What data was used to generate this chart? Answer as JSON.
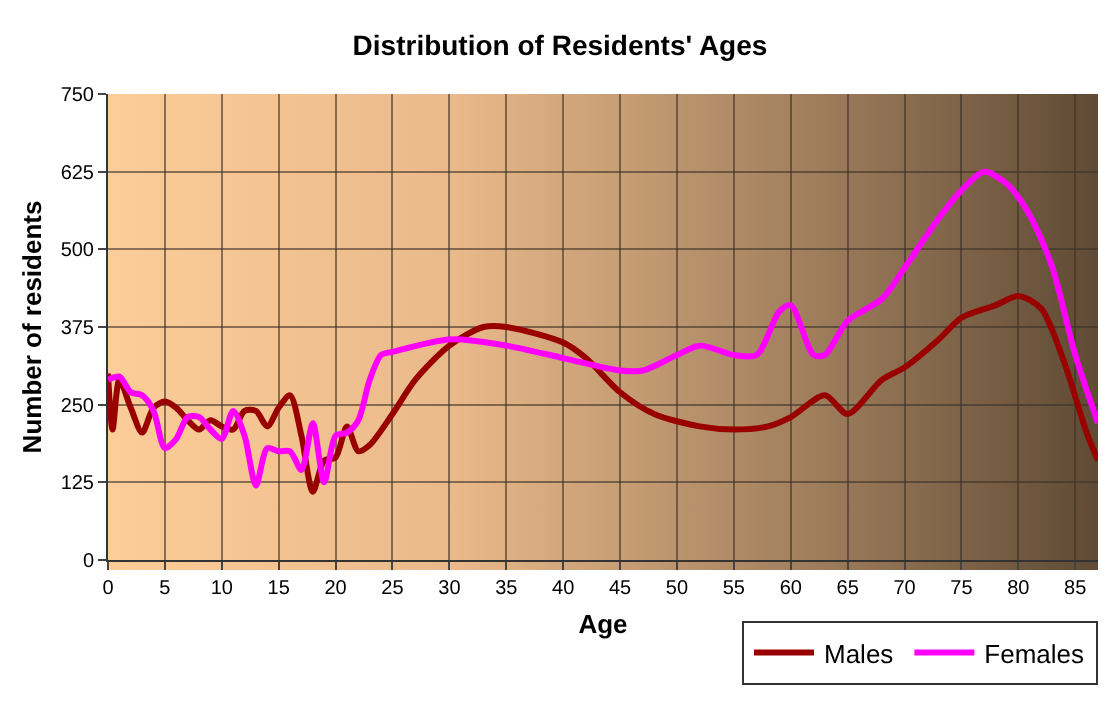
{
  "chart_data": {
    "type": "line",
    "title": "Distribution of Residents' Ages",
    "xlabel": "Age",
    "ylabel": "Number of residents",
    "xlim": [
      0,
      87
    ],
    "xticks": [
      0,
      5,
      10,
      15,
      20,
      25,
      30,
      35,
      40,
      45,
      50,
      55,
      60,
      65,
      70,
      75,
      80,
      85
    ],
    "ylim": [
      0,
      750
    ],
    "yticks": [
      0,
      125,
      250,
      375,
      500,
      625,
      750
    ],
    "grid": true,
    "legend": "bottom right",
    "series": [
      {
        "name": "Males",
        "color": "#990000",
        "x": [
          0,
          0.4,
          1,
          2,
          3,
          4,
          5,
          6,
          7,
          8,
          9,
          10,
          11,
          12,
          13,
          14,
          15,
          16,
          17,
          18,
          19,
          20,
          21,
          22,
          23,
          25,
          27,
          30,
          33,
          35,
          40,
          42,
          45,
          48,
          52,
          55,
          58,
          60,
          63,
          65,
          68,
          70,
          73,
          75,
          78,
          80,
          82,
          84,
          86,
          87
        ],
        "values": [
          300,
          210,
          290,
          245,
          205,
          245,
          255,
          245,
          225,
          210,
          225,
          215,
          210,
          240,
          240,
          215,
          245,
          265,
          200,
          110,
          160,
          165,
          215,
          175,
          185,
          235,
          290,
          345,
          375,
          375,
          350,
          325,
          270,
          235,
          215,
          210,
          215,
          230,
          265,
          235,
          290,
          310,
          355,
          390,
          410,
          425,
          405,
          320,
          205,
          160
        ]
      },
      {
        "name": "Females",
        "color": "#ff00ff",
        "x": [
          0,
          1,
          2,
          3,
          4,
          5,
          6,
          7,
          8,
          9,
          10,
          11,
          12,
          13,
          14,
          15,
          16,
          17,
          18,
          19,
          20,
          21,
          22,
          23,
          24,
          25,
          30,
          35,
          40,
          45,
          47,
          50,
          52,
          55,
          57,
          59,
          60,
          62,
          63,
          65,
          68,
          70,
          73,
          75,
          77,
          79,
          81,
          83,
          85,
          87
        ],
        "values": [
          290,
          295,
          270,
          265,
          240,
          180,
          195,
          230,
          230,
          210,
          195,
          240,
          200,
          120,
          180,
          175,
          175,
          145,
          220,
          125,
          200,
          205,
          225,
          290,
          330,
          335,
          355,
          345,
          325,
          305,
          305,
          330,
          345,
          330,
          330,
          400,
          410,
          330,
          330,
          385,
          420,
          470,
          550,
          595,
          625,
          605,
          555,
          470,
          330,
          220
        ]
      }
    ]
  }
}
